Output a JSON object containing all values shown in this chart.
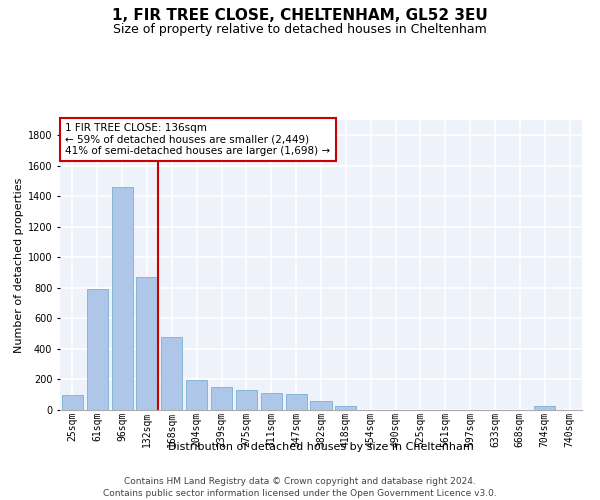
{
  "title": "1, FIR TREE CLOSE, CHELTENHAM, GL52 3EU",
  "subtitle": "Size of property relative to detached houses in Cheltenham",
  "xlabel": "Distribution of detached houses by size in Cheltenham",
  "ylabel": "Number of detached properties",
  "categories": [
    "25sqm",
    "61sqm",
    "96sqm",
    "132sqm",
    "168sqm",
    "204sqm",
    "239sqm",
    "275sqm",
    "311sqm",
    "347sqm",
    "382sqm",
    "418sqm",
    "454sqm",
    "490sqm",
    "525sqm",
    "561sqm",
    "597sqm",
    "633sqm",
    "668sqm",
    "704sqm",
    "740sqm"
  ],
  "values": [
    100,
    790,
    1460,
    870,
    480,
    195,
    150,
    130,
    110,
    105,
    60,
    25,
    0,
    0,
    0,
    0,
    0,
    0,
    0,
    25,
    0
  ],
  "bar_color": "#aec6e8",
  "bar_edge_color": "#7aafd4",
  "property_line_color": "#cc0000",
  "property_line_index": 3,
  "annotation_text": "1 FIR TREE CLOSE: 136sqm\n← 59% of detached houses are smaller (2,449)\n41% of semi-detached houses are larger (1,698) →",
  "annotation_box_color": "#cc0000",
  "ylim": [
    0,
    1900
  ],
  "yticks": [
    0,
    200,
    400,
    600,
    800,
    1000,
    1200,
    1400,
    1600,
    1800
  ],
  "footer_line1": "Contains HM Land Registry data © Crown copyright and database right 2024.",
  "footer_line2": "Contains public sector information licensed under the Open Government Licence v3.0.",
  "background_color": "#eef2fa",
  "grid_color": "#ffffff",
  "title_fontsize": 11,
  "subtitle_fontsize": 9,
  "axis_label_fontsize": 8,
  "tick_fontsize": 7,
  "footer_fontsize": 6.5,
  "annotation_fontsize": 7.5
}
